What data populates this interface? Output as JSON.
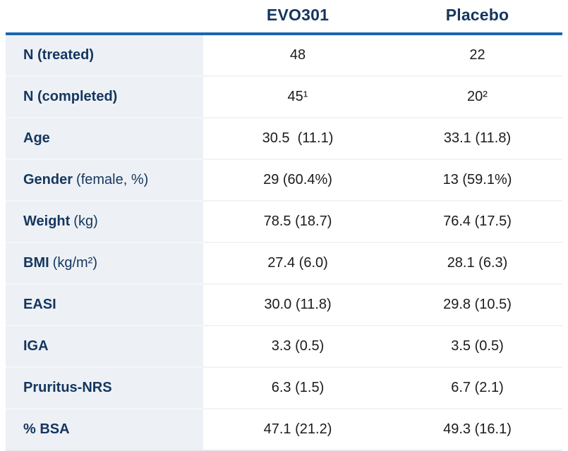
{
  "colors": {
    "heading_navy": "#14365f",
    "header_rule_blue": "#1a66b0",
    "label_column_bg": "#edf1f5",
    "value_text": "#1b1b1b"
  },
  "table": {
    "columns": [
      "",
      "EVO301",
      "Placebo"
    ],
    "rows": [
      {
        "label": "N (treated)",
        "label_note": "",
        "evo301": "48",
        "placebo": "22"
      },
      {
        "label": "N (completed)",
        "label_note": "",
        "evo301": "45¹",
        "placebo": "20²"
      },
      {
        "label": "Age",
        "label_note": "",
        "evo301": "30.5  (11.1)",
        "placebo": "33.1 (11.8)"
      },
      {
        "label": "Gender",
        "label_note": "(female, %)",
        "evo301": "29 (60.4%)",
        "placebo": "13 (59.1%)"
      },
      {
        "label": "Weight",
        "label_note": "(kg)",
        "evo301": "78.5 (18.7)",
        "placebo": "76.4 (17.5)"
      },
      {
        "label": "BMI",
        "label_note": "(kg/m²)",
        "evo301": "27.4 (6.0)",
        "placebo": "28.1 (6.3)"
      },
      {
        "label": "EASI",
        "label_note": "",
        "evo301": "30.0 (11.8)",
        "placebo": "29.8 (10.5)"
      },
      {
        "label": "IGA",
        "label_note": "",
        "evo301": "3.3 (0.5)",
        "placebo": "3.5 (0.5)"
      },
      {
        "label": "Pruritus-NRS",
        "label_note": "",
        "evo301": "6.3 (1.5)",
        "placebo": "6.7 (2.1)"
      },
      {
        "label": "% BSA",
        "label_note": "",
        "evo301": "47.1 (21.2)",
        "placebo": "49.3 (16.1)"
      }
    ]
  },
  "chart_data": {
    "type": "table",
    "title": "",
    "columns": [
      "",
      "EVO301",
      "Placebo"
    ],
    "rows": [
      [
        "N (treated)",
        "48",
        "22"
      ],
      [
        "N (completed)",
        "45¹",
        "20²"
      ],
      [
        "Age",
        "30.5 (11.1)",
        "33.1 (11.8)"
      ],
      [
        "Gender (female, %)",
        "29 (60.4%)",
        "13 (59.1%)"
      ],
      [
        "Weight (kg)",
        "78.5 (18.7)",
        "76.4 (17.5)"
      ],
      [
        "BMI (kg/m²)",
        "27.4 (6.0)",
        "28.1 (6.3)"
      ],
      [
        "EASI",
        "30.0 (11.8)",
        "29.8 (10.5)"
      ],
      [
        "IGA",
        "3.3 (0.5)",
        "3.5 (0.5)"
      ],
      [
        "Pruritus-NRS",
        "6.3 (1.5)",
        "6.7 (2.1)"
      ],
      [
        "% BSA",
        "47.1 (21.2)",
        "49.3 (16.1)"
      ]
    ]
  }
}
